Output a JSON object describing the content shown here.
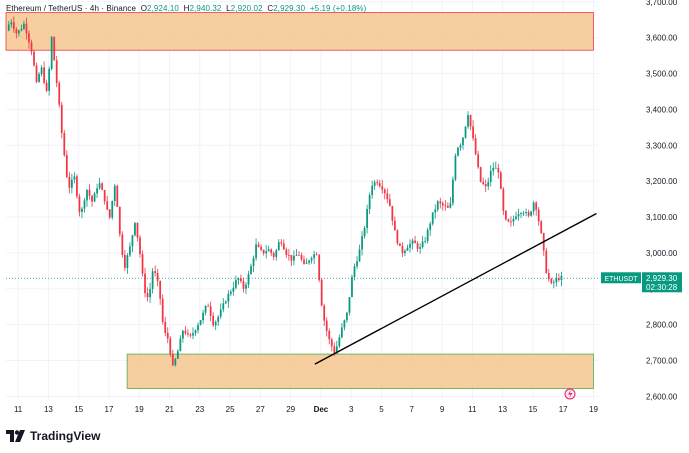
{
  "header": {
    "symbol": "Ethereum / TetherUS",
    "interval": "4h",
    "exchange": "Binance",
    "open": "2,924.10",
    "high": "2,940.32",
    "low": "2,920.02",
    "close": "2,929.30",
    "change": "+5.19 (+0.18%)"
  },
  "price_tag": {
    "symbol": "ETHUSDT",
    "price": "2,929.30",
    "countdown": "02:30:28"
  },
  "footer": {
    "brand": "TradingView"
  },
  "colors": {
    "up": "#089981",
    "down": "#f23645",
    "zone_fill": "#f5c68e",
    "top_zone_border": "#f23645",
    "bottom_zone_border": "#4caf50",
    "trendline": "#000000"
  },
  "icons": [
    "tradingview-logo-icon",
    "lightning-icon"
  ],
  "chart_data": {
    "type": "candlestick",
    "y_axis": {
      "ticks": [
        2600,
        2700,
        2800,
        2900,
        3000,
        3100,
        3200,
        3300,
        3400,
        3500,
        3600,
        3700
      ],
      "tick_labels": [
        "2,600.00",
        "2,700.00",
        "2,800.00",
        "2,900.00",
        "3,000.00",
        "3,100.00",
        "3,200.00",
        "3,300.00",
        "3,400.00",
        "3,500.00",
        "3,600.00",
        "3,700.00"
      ],
      "range": [
        2590,
        3705
      ]
    },
    "x_axis": {
      "day_range": [
        10.2,
        49.3
      ],
      "ticks": [
        {
          "day": 11,
          "label": "11"
        },
        {
          "day": 13,
          "label": "13"
        },
        {
          "day": 15,
          "label": "15"
        },
        {
          "day": 17,
          "label": "17"
        },
        {
          "day": 19,
          "label": "19"
        },
        {
          "day": 21,
          "label": "21"
        },
        {
          "day": 23,
          "label": "23"
        },
        {
          "day": 25,
          "label": "25"
        },
        {
          "day": 27,
          "label": "27"
        },
        {
          "day": 29,
          "label": "29"
        },
        {
          "day": 31,
          "label": "Dec"
        },
        {
          "day": 33,
          "label": "3"
        },
        {
          "day": 35,
          "label": "5"
        },
        {
          "day": 37,
          "label": "7"
        },
        {
          "day": 39,
          "label": "9"
        },
        {
          "day": 41,
          "label": "11"
        },
        {
          "day": 43,
          "label": "13"
        },
        {
          "day": 45,
          "label": "15"
        },
        {
          "day": 47,
          "label": "17"
        },
        {
          "day": 49,
          "label": "19"
        }
      ]
    },
    "price_path": [
      [
        10.3,
        3620
      ],
      [
        10.6,
        3650
      ],
      [
        11.0,
        3610
      ],
      [
        11.5,
        3640
      ],
      [
        12.0,
        3560
      ],
      [
        12.3,
        3470
      ],
      [
        12.6,
        3520
      ],
      [
        13.0,
        3440
      ],
      [
        13.3,
        3600
      ],
      [
        13.7,
        3450
      ],
      [
        14.0,
        3320
      ],
      [
        14.4,
        3180
      ],
      [
        14.8,
        3210
      ],
      [
        15.2,
        3100
      ],
      [
        15.6,
        3180
      ],
      [
        16.0,
        3140
      ],
      [
        16.4,
        3200
      ],
      [
        16.8,
        3150
      ],
      [
        17.1,
        3090
      ],
      [
        17.5,
        3200
      ],
      [
        17.8,
        3050
      ],
      [
        18.1,
        2960
      ],
      [
        18.5,
        3020
      ],
      [
        18.8,
        3090
      ],
      [
        19.1,
        3010
      ],
      [
        19.4,
        2900
      ],
      [
        19.7,
        2870
      ],
      [
        20.0,
        2960
      ],
      [
        20.4,
        2900
      ],
      [
        20.7,
        2780
      ],
      [
        21.0,
        2760
      ],
      [
        21.3,
        2680
      ],
      [
        21.6,
        2720
      ],
      [
        22.0,
        2790
      ],
      [
        22.4,
        2760
      ],
      [
        22.8,
        2790
      ],
      [
        23.2,
        2820
      ],
      [
        23.6,
        2860
      ],
      [
        24.0,
        2800
      ],
      [
        24.4,
        2830
      ],
      [
        24.8,
        2870
      ],
      [
        25.2,
        2900
      ],
      [
        25.6,
        2930
      ],
      [
        26.0,
        2900
      ],
      [
        26.4,
        2950
      ],
      [
        26.8,
        3020
      ],
      [
        27.2,
        3000
      ],
      [
        27.6,
        3010
      ],
      [
        28.0,
        2990
      ],
      [
        28.4,
        3040
      ],
      [
        28.8,
        3000
      ],
      [
        29.2,
        2980
      ],
      [
        29.6,
        3000
      ],
      [
        30.0,
        2960
      ],
      [
        30.4,
        2990
      ],
      [
        30.8,
        3000
      ],
      [
        31.2,
        2830
      ],
      [
        31.6,
        2760
      ],
      [
        32.0,
        2720
      ],
      [
        32.4,
        2780
      ],
      [
        32.8,
        2830
      ],
      [
        33.2,
        2950
      ],
      [
        33.6,
        3000
      ],
      [
        34.0,
        3080
      ],
      [
        34.4,
        3190
      ],
      [
        34.8,
        3200
      ],
      [
        35.2,
        3180
      ],
      [
        35.6,
        3140
      ],
      [
        36.0,
        3050
      ],
      [
        36.4,
        3000
      ],
      [
        36.8,
        3020
      ],
      [
        37.2,
        3030
      ],
      [
        37.6,
        3010
      ],
      [
        38.0,
        3040
      ],
      [
        38.4,
        3100
      ],
      [
        38.8,
        3140
      ],
      [
        39.2,
        3130
      ],
      [
        39.6,
        3120
      ],
      [
        40.0,
        3290
      ],
      [
        40.4,
        3310
      ],
      [
        40.8,
        3390
      ],
      [
        41.2,
        3300
      ],
      [
        41.6,
        3200
      ],
      [
        42.0,
        3180
      ],
      [
        42.4,
        3240
      ],
      [
        42.8,
        3230
      ],
      [
        43.2,
        3090
      ],
      [
        43.6,
        3080
      ],
      [
        44.0,
        3110
      ],
      [
        44.4,
        3120
      ],
      [
        44.8,
        3100
      ],
      [
        45.2,
        3150
      ],
      [
        45.6,
        3060
      ],
      [
        46.0,
        2940
      ],
      [
        46.3,
        2910
      ],
      [
        46.6,
        2925
      ],
      [
        46.8,
        2930
      ]
    ],
    "last_price": 2929.3,
    "zones": [
      {
        "name": "resistance-zone",
        "day_from": 10.2,
        "day_to": 49.0,
        "price_low": 3565,
        "price_high": 3670
      },
      {
        "name": "support-zone",
        "day_from": 18.2,
        "day_to": 49.0,
        "price_low": 2622,
        "price_high": 2718
      }
    ],
    "trendline": {
      "from": {
        "day": 30.6,
        "price": 2690
      },
      "to": {
        "day": 49.2,
        "price": 3110
      }
    }
  }
}
